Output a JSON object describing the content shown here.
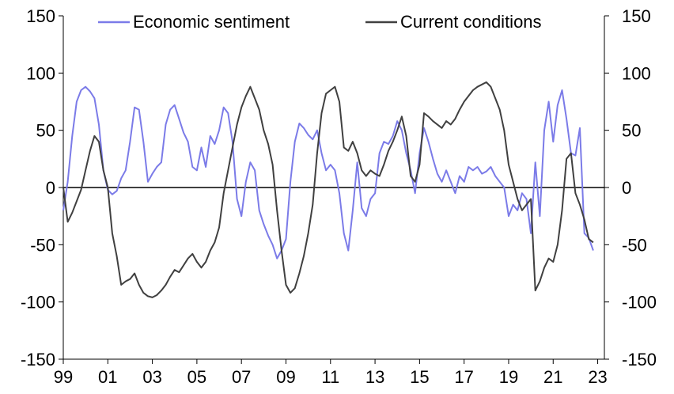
{
  "chart_data": {
    "type": "line",
    "title": "",
    "xlabel": "",
    "ylabel_left": "",
    "ylabel_right": "",
    "ylim": [
      -150,
      150
    ],
    "xlim": [
      1999.0,
      2023.3
    ],
    "yticks": [
      -150,
      -100,
      -50,
      0,
      50,
      100,
      150
    ],
    "ytick_labels": [
      "-150",
      "-100",
      "-50",
      "0",
      "50",
      "100",
      "150"
    ],
    "xticks": [
      1999,
      2001,
      2003,
      2005,
      2007,
      2009,
      2011,
      2013,
      2015,
      2017,
      2019,
      2021,
      2023
    ],
    "xtick_labels": [
      "99",
      "01",
      "03",
      "05",
      "07",
      "09",
      "11",
      "13",
      "15",
      "17",
      "19",
      "21",
      "23"
    ],
    "zero_line": true,
    "legend_position": "top",
    "series": [
      {
        "name": "Economic sentiment",
        "color": "#7b7be8",
        "points": [
          [
            1999.0,
            -20
          ],
          [
            1999.2,
            5
          ],
          [
            1999.4,
            45
          ],
          [
            1999.6,
            75
          ],
          [
            1999.8,
            85
          ],
          [
            2000.0,
            88
          ],
          [
            2000.2,
            84
          ],
          [
            2000.4,
            78
          ],
          [
            2000.6,
            55
          ],
          [
            2000.8,
            15
          ],
          [
            2001.0,
            -2
          ],
          [
            2001.2,
            -6
          ],
          [
            2001.4,
            -3
          ],
          [
            2001.6,
            8
          ],
          [
            2001.8,
            15
          ],
          [
            2002.0,
            40
          ],
          [
            2002.2,
            70
          ],
          [
            2002.4,
            68
          ],
          [
            2002.6,
            40
          ],
          [
            2002.8,
            5
          ],
          [
            2003.0,
            12
          ],
          [
            2003.2,
            18
          ],
          [
            2003.4,
            22
          ],
          [
            2003.6,
            55
          ],
          [
            2003.8,
            68
          ],
          [
            2004.0,
            72
          ],
          [
            2004.2,
            60
          ],
          [
            2004.4,
            48
          ],
          [
            2004.6,
            40
          ],
          [
            2004.8,
            18
          ],
          [
            2005.0,
            15
          ],
          [
            2005.2,
            35
          ],
          [
            2005.4,
            18
          ],
          [
            2005.6,
            45
          ],
          [
            2005.8,
            38
          ],
          [
            2006.0,
            50
          ],
          [
            2006.2,
            70
          ],
          [
            2006.4,
            65
          ],
          [
            2006.6,
            40
          ],
          [
            2006.8,
            -10
          ],
          [
            2007.0,
            -25
          ],
          [
            2007.2,
            5
          ],
          [
            2007.4,
            22
          ],
          [
            2007.6,
            15
          ],
          [
            2007.8,
            -20
          ],
          [
            2008.0,
            -32
          ],
          [
            2008.2,
            -42
          ],
          [
            2008.4,
            -50
          ],
          [
            2008.6,
            -62
          ],
          [
            2008.8,
            -55
          ],
          [
            2009.0,
            -45
          ],
          [
            2009.2,
            5
          ],
          [
            2009.4,
            40
          ],
          [
            2009.6,
            56
          ],
          [
            2009.8,
            52
          ],
          [
            2010.0,
            46
          ],
          [
            2010.2,
            42
          ],
          [
            2010.4,
            50
          ],
          [
            2010.6,
            30
          ],
          [
            2010.8,
            15
          ],
          [
            2011.0,
            20
          ],
          [
            2011.2,
            15
          ],
          [
            2011.4,
            -5
          ],
          [
            2011.6,
            -40
          ],
          [
            2011.8,
            -55
          ],
          [
            2012.0,
            -20
          ],
          [
            2012.2,
            22
          ],
          [
            2012.4,
            -18
          ],
          [
            2012.6,
            -25
          ],
          [
            2012.8,
            -10
          ],
          [
            2013.0,
            -5
          ],
          [
            2013.2,
            30
          ],
          [
            2013.4,
            40
          ],
          [
            2013.6,
            38
          ],
          [
            2013.8,
            45
          ],
          [
            2014.0,
            58
          ],
          [
            2014.2,
            50
          ],
          [
            2014.4,
            30
          ],
          [
            2014.6,
            15
          ],
          [
            2014.8,
            -5
          ],
          [
            2015.0,
            30
          ],
          [
            2015.2,
            52
          ],
          [
            2015.4,
            40
          ],
          [
            2015.6,
            25
          ],
          [
            2015.8,
            12
          ],
          [
            2016.0,
            5
          ],
          [
            2016.2,
            15
          ],
          [
            2016.4,
            5
          ],
          [
            2016.6,
            -5
          ],
          [
            2016.8,
            10
          ],
          [
            2017.0,
            5
          ],
          [
            2017.2,
            18
          ],
          [
            2017.4,
            15
          ],
          [
            2017.6,
            18
          ],
          [
            2017.8,
            12
          ],
          [
            2018.0,
            14
          ],
          [
            2018.2,
            18
          ],
          [
            2018.4,
            10
          ],
          [
            2018.6,
            5
          ],
          [
            2018.8,
            0
          ],
          [
            2019.0,
            -25
          ],
          [
            2019.2,
            -15
          ],
          [
            2019.4,
            -20
          ],
          [
            2019.6,
            -5
          ],
          [
            2019.8,
            -10
          ],
          [
            2020.0,
            -40
          ],
          [
            2020.2,
            22
          ],
          [
            2020.4,
            -25
          ],
          [
            2020.6,
            50
          ],
          [
            2020.8,
            75
          ],
          [
            2021.0,
            40
          ],
          [
            2021.2,
            72
          ],
          [
            2021.4,
            85
          ],
          [
            2021.6,
            60
          ],
          [
            2021.8,
            30
          ],
          [
            2022.0,
            28
          ],
          [
            2022.2,
            52
          ],
          [
            2022.4,
            -40
          ],
          [
            2022.6,
            -44
          ],
          [
            2022.8,
            -55
          ]
        ]
      },
      {
        "name": "Current conditions",
        "color": "#404040",
        "points": [
          [
            1999.0,
            0
          ],
          [
            1999.2,
            -30
          ],
          [
            1999.4,
            -22
          ],
          [
            1999.6,
            -12
          ],
          [
            1999.8,
            -2
          ],
          [
            2000.0,
            15
          ],
          [
            2000.2,
            32
          ],
          [
            2000.4,
            45
          ],
          [
            2000.6,
            40
          ],
          [
            2000.8,
            15
          ],
          [
            2001.0,
            0
          ],
          [
            2001.2,
            -40
          ],
          [
            2001.4,
            -60
          ],
          [
            2001.6,
            -85
          ],
          [
            2001.8,
            -82
          ],
          [
            2002.0,
            -80
          ],
          [
            2002.2,
            -75
          ],
          [
            2002.4,
            -85
          ],
          [
            2002.6,
            -92
          ],
          [
            2002.8,
            -95
          ],
          [
            2003.0,
            -96
          ],
          [
            2003.2,
            -94
          ],
          [
            2003.4,
            -90
          ],
          [
            2003.6,
            -85
          ],
          [
            2003.8,
            -78
          ],
          [
            2004.0,
            -72
          ],
          [
            2004.2,
            -74
          ],
          [
            2004.4,
            -68
          ],
          [
            2004.6,
            -62
          ],
          [
            2004.8,
            -58
          ],
          [
            2005.0,
            -65
          ],
          [
            2005.2,
            -70
          ],
          [
            2005.4,
            -65
          ],
          [
            2005.6,
            -55
          ],
          [
            2005.8,
            -48
          ],
          [
            2006.0,
            -35
          ],
          [
            2006.2,
            -5
          ],
          [
            2006.4,
            15
          ],
          [
            2006.6,
            35
          ],
          [
            2006.8,
            55
          ],
          [
            2007.0,
            70
          ],
          [
            2007.2,
            80
          ],
          [
            2007.4,
            88
          ],
          [
            2007.6,
            78
          ],
          [
            2007.8,
            68
          ],
          [
            2008.0,
            50
          ],
          [
            2008.2,
            38
          ],
          [
            2008.4,
            20
          ],
          [
            2008.6,
            -20
          ],
          [
            2008.8,
            -55
          ],
          [
            2009.0,
            -85
          ],
          [
            2009.2,
            -92
          ],
          [
            2009.4,
            -88
          ],
          [
            2009.6,
            -75
          ],
          [
            2009.8,
            -60
          ],
          [
            2010.0,
            -40
          ],
          [
            2010.2,
            -15
          ],
          [
            2010.4,
            30
          ],
          [
            2010.6,
            65
          ],
          [
            2010.8,
            82
          ],
          [
            2011.0,
            85
          ],
          [
            2011.2,
            88
          ],
          [
            2011.4,
            75
          ],
          [
            2011.6,
            35
          ],
          [
            2011.8,
            32
          ],
          [
            2012.0,
            40
          ],
          [
            2012.2,
            30
          ],
          [
            2012.4,
            15
          ],
          [
            2012.6,
            10
          ],
          [
            2012.8,
            15
          ],
          [
            2013.0,
            12
          ],
          [
            2013.2,
            10
          ],
          [
            2013.4,
            20
          ],
          [
            2013.6,
            32
          ],
          [
            2013.8,
            40
          ],
          [
            2014.0,
            50
          ],
          [
            2014.2,
            62
          ],
          [
            2014.4,
            45
          ],
          [
            2014.6,
            10
          ],
          [
            2014.8,
            5
          ],
          [
            2015.0,
            20
          ],
          [
            2015.2,
            65
          ],
          [
            2015.4,
            62
          ],
          [
            2015.6,
            58
          ],
          [
            2015.8,
            55
          ],
          [
            2016.0,
            52
          ],
          [
            2016.2,
            58
          ],
          [
            2016.4,
            55
          ],
          [
            2016.6,
            60
          ],
          [
            2016.8,
            68
          ],
          [
            2017.0,
            75
          ],
          [
            2017.2,
            80
          ],
          [
            2017.4,
            85
          ],
          [
            2017.6,
            88
          ],
          [
            2017.8,
            90
          ],
          [
            2018.0,
            92
          ],
          [
            2018.2,
            88
          ],
          [
            2018.4,
            78
          ],
          [
            2018.6,
            68
          ],
          [
            2018.8,
            50
          ],
          [
            2019.0,
            20
          ],
          [
            2019.2,
            5
          ],
          [
            2019.4,
            -10
          ],
          [
            2019.6,
            -20
          ],
          [
            2019.8,
            -15
          ],
          [
            2020.0,
            -10
          ],
          [
            2020.2,
            -90
          ],
          [
            2020.4,
            -82
          ],
          [
            2020.6,
            -70
          ],
          [
            2020.8,
            -62
          ],
          [
            2021.0,
            -65
          ],
          [
            2021.2,
            -50
          ],
          [
            2021.4,
            -20
          ],
          [
            2021.6,
            25
          ],
          [
            2021.8,
            30
          ],
          [
            2022.0,
            -5
          ],
          [
            2022.2,
            -15
          ],
          [
            2022.4,
            -28
          ],
          [
            2022.6,
            -45
          ],
          [
            2022.8,
            -48
          ]
        ]
      }
    ]
  }
}
